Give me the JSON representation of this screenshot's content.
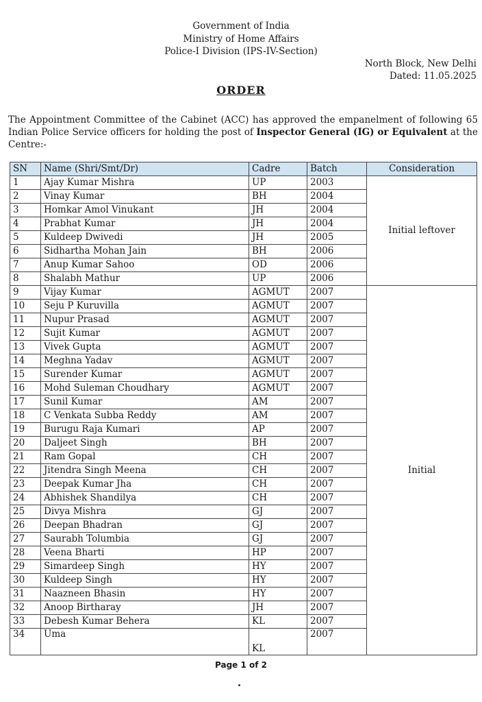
{
  "header": {
    "line1": "Government of India",
    "line2": "Ministry of Home Affairs",
    "line3": "Police-I Division (IPS-IV-Section)",
    "place": "North Block, New Delhi",
    "dated": "Dated: 11.05.2025"
  },
  "title": "ORDER",
  "para": {
    "pre": "The Appointment Committee of the Cabinet (ACC) has approved the empanelment of following 65 Indian Police Service officers for holding the post of ",
    "bold": "Inspector General (IG) or Equivalent",
    "post": " at the Centre:-"
  },
  "table": {
    "headers": [
      "SN",
      "Name (Shri/Smt/Dr)",
      "Cadre",
      "Batch",
      "Consideration"
    ],
    "groups": [
      {
        "label": "Initial leftover",
        "rows": [
          [
            "1",
            "Ajay Kumar Mishra",
            "UP",
            "2003"
          ],
          [
            "2",
            "Vinay Kumar",
            "BH",
            "2004"
          ],
          [
            "3",
            "Homkar Amol Vinukant",
            "JH",
            "2004"
          ],
          [
            "4",
            "Prabhat Kumar",
            "JH",
            "2004"
          ],
          [
            "5",
            "Kuldeep Dwivedi",
            "JH",
            "2005"
          ],
          [
            "6",
            "Sidhartha Mohan Jain",
            "BH",
            "2006"
          ],
          [
            "7",
            "Anup Kumar Sahoo",
            "OD",
            "2006"
          ],
          [
            "8",
            "Shalabh Mathur",
            "UP",
            "2006"
          ]
        ]
      },
      {
        "label": "Initial",
        "rows": [
          [
            "9",
            "Vijay Kumar",
            "AGMUT",
            "2007"
          ],
          [
            "10",
            "Seju P Kuruvilla",
            "AGMUT",
            "2007"
          ],
          [
            "11",
            "Nupur Prasad",
            "AGMUT",
            "2007"
          ],
          [
            "12",
            "Sujit Kumar",
            "AGMUT",
            "2007"
          ],
          [
            "13",
            "Vivek Gupta",
            "AGMUT",
            "2007"
          ],
          [
            "14",
            "Meghna Yadav",
            "AGMUT",
            "2007"
          ],
          [
            "15",
            "Surender Kumar",
            "AGMUT",
            "2007"
          ],
          [
            "16",
            "Mohd Suleman Choudhary",
            "AGMUT",
            "2007"
          ],
          [
            "17",
            "Sunil Kumar",
            "AM",
            "2007"
          ],
          [
            "18",
            "C Venkata Subba Reddy",
            "AM",
            "2007"
          ],
          [
            "19",
            "Burugu Raja Kumari",
            "AP",
            "2007"
          ],
          [
            "20",
            "Daljeet Singh",
            "BH",
            "2007"
          ],
          [
            "21",
            "Ram Gopal",
            "CH",
            "2007"
          ],
          [
            "22",
            "Jitendra Singh Meena",
            "CH",
            "2007"
          ],
          [
            "23",
            "Deepak Kumar Jha",
            "CH",
            "2007"
          ],
          [
            "24",
            "Abhishek Shandilya",
            "CH",
            "2007"
          ],
          [
            "25",
            "Divya Mishra",
            "GJ",
            "2007"
          ],
          [
            "26",
            "Deepan Bhadran",
            "GJ",
            "2007"
          ],
          [
            "27",
            "Saurabh Tolumbia",
            "GJ",
            "2007"
          ],
          [
            "28",
            "Veena Bharti",
            "HP",
            "2007"
          ],
          [
            "29",
            "Simardeep Singh",
            "HY",
            "2007"
          ],
          [
            "30",
            "Kuldeep Singh",
            "HY",
            "2007"
          ],
          [
            "31",
            "Naazneen Bhasin",
            "HY",
            "2007"
          ],
          [
            "32",
            "Anoop Birtharay",
            "JH",
            "2007"
          ],
          [
            "33",
            "Debesh Kumar Behera",
            "KL",
            "2007"
          ],
          [
            "34",
            "Uma",
            "KL",
            "2007"
          ]
        ]
      }
    ]
  },
  "footer": {
    "page": "Page 1 of 2"
  }
}
